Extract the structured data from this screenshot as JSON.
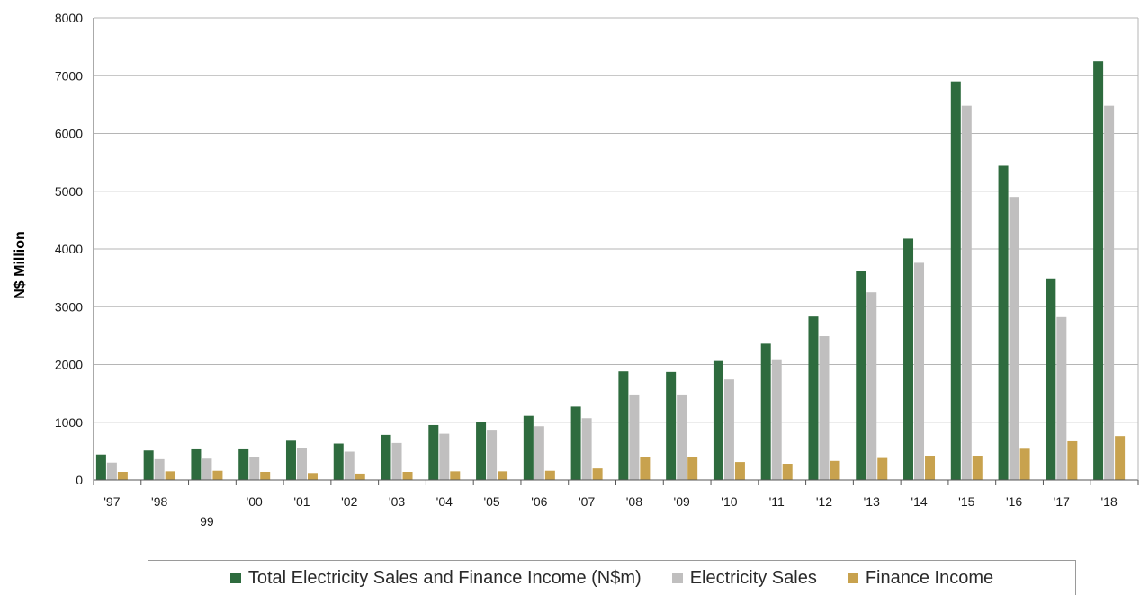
{
  "chart_data": {
    "type": "bar",
    "title": "",
    "xlabel": "",
    "ylabel": "N$ Million",
    "ylim": [
      0,
      8000
    ],
    "yticks": [
      "0",
      "1000",
      "2000",
      "3000",
      "4000",
      "5000",
      "6000",
      "7000",
      "8000"
    ],
    "grid": true,
    "legend_position": "bottom",
    "categories": [
      "'97",
      "'98",
      "99",
      "'00",
      "'01",
      "'02",
      "'03",
      "'04",
      "'05",
      "'06",
      "'07",
      "'08",
      "'09",
      "'10",
      "'11",
      "'12",
      "'13",
      "'14",
      "'15",
      "'16",
      "'17",
      "'18"
    ],
    "series": [
      {
        "name": "Total Electricity Sales and Finance Income (N$m)",
        "color": "#2e6b3e",
        "values": [
          440,
          510,
          530,
          530,
          680,
          630,
          780,
          950,
          1010,
          1110,
          1270,
          1880,
          1870,
          2060,
          2360,
          2830,
          3620,
          4180,
          6900,
          5440,
          3490,
          7250
        ]
      },
      {
        "name": "Electricity Sales",
        "color": "#c0bfbf",
        "values": [
          300,
          360,
          370,
          400,
          550,
          490,
          640,
          800,
          870,
          930,
          1070,
          1480,
          1480,
          1740,
          2090,
          2490,
          3250,
          3760,
          6480,
          4900,
          2820,
          6480
        ]
      },
      {
        "name": "Finance Income",
        "color": "#c8a24e",
        "values": [
          140,
          150,
          160,
          140,
          120,
          110,
          140,
          150,
          150,
          160,
          200,
          400,
          390,
          310,
          280,
          330,
          380,
          420,
          420,
          540,
          670,
          760
        ]
      }
    ]
  }
}
